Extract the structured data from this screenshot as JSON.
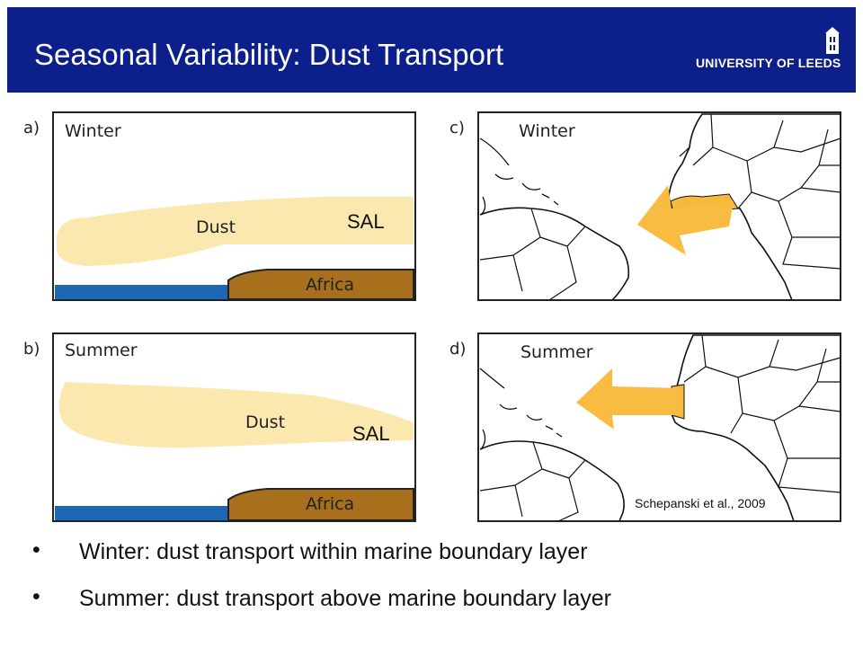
{
  "header": {
    "title": "Seasonal Variability: Dust Transport",
    "logo_text": "UNIVERSITY OF LEEDS",
    "bg_color": "#0d1f8a"
  },
  "panels": {
    "a": {
      "letter": "a)",
      "season": "Winter",
      "dust_label": "Dust",
      "land_label": "Africa",
      "sal_label": "SAL"
    },
    "b": {
      "letter": "b)",
      "season": "Summer",
      "dust_label": "Dust",
      "land_label": "Africa",
      "sal_label": "SAL"
    },
    "c": {
      "letter": "c)",
      "season": "Winter"
    },
    "d": {
      "letter": "d)",
      "season": "Summer"
    }
  },
  "citation": "Schepanski et al., 2009",
  "bullets": [
    "Winter: dust transport within marine boundary layer",
    "Summer: dust transport above marine boundary layer"
  ],
  "colors": {
    "dust": "#fbe8ae",
    "ocean": "#1c68b5",
    "land": "#a8701d",
    "arrow": "#f9bc42",
    "highlight": "#f7b93b"
  }
}
